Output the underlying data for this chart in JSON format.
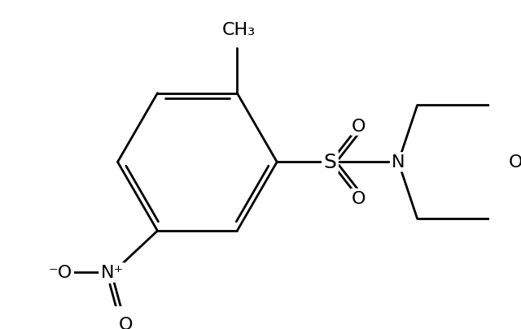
{
  "bg_color": "#ffffff",
  "line_color": "#000000",
  "lw": 2.0,
  "fig_width": 6.4,
  "fig_height": 4.06,
  "dpi": 100,
  "ch3_label": "CH₃",
  "S_label": "S",
  "N_label": "N",
  "O_label": "O",
  "NO2_N_label": "N⁺",
  "NO2_Om_label": "⁻O",
  "NO2_O_label": "O"
}
